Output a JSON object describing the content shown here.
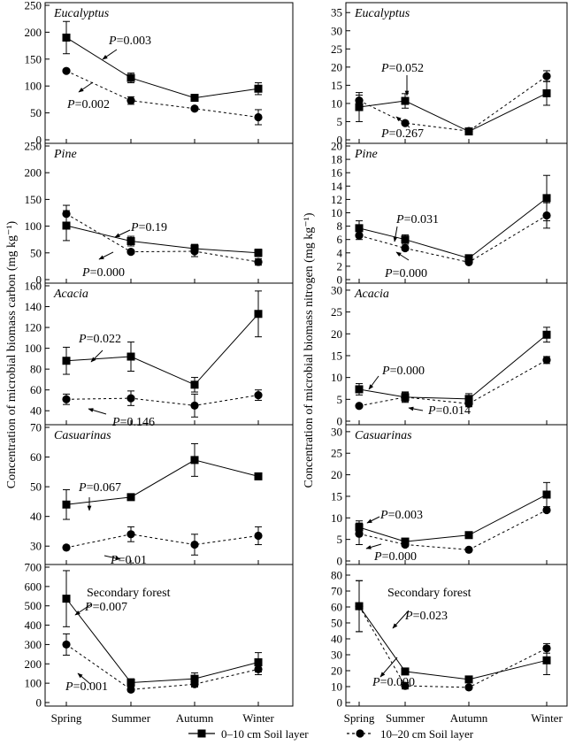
{
  "categories": [
    "Spring",
    "Summer",
    "Autumn",
    "Winter"
  ],
  "legend": [
    "0–10 cm Soil layer",
    "10–20 cm Soil layer"
  ],
  "ylabels": {
    "carbon": "Concentration of microbial biomass carbon (mg kg⁻¹)",
    "nitrogen": "Concentration of microbial biomass nitrogen (mg kg⁻¹)"
  },
  "chart_data": [
    {
      "type": "line",
      "variable": "carbon",
      "title": "Eucalyptus",
      "title_italic": true,
      "ylim": [
        0,
        250
      ],
      "yticks": [
        0,
        50,
        100,
        150,
        200,
        250
      ],
      "series": [
        {
          "name": "0–10 cm Soil layer",
          "values": [
            190,
            115,
            78,
            95
          ],
          "errors": [
            30,
            9,
            3,
            11
          ]
        },
        {
          "name": "10–20 cm Soil layer",
          "values": [
            128,
            73,
            58,
            42
          ],
          "errors": [
            3,
            7,
            3,
            14
          ]
        }
      ],
      "annotations": [
        "P=0.003",
        "P=0.002"
      ]
    },
    {
      "type": "line",
      "variable": "carbon",
      "title": "Pine",
      "title_italic": true,
      "ylim": [
        0,
        250
      ],
      "yticks": [
        0,
        50,
        100,
        150,
        200,
        250
      ],
      "series": [
        {
          "name": "0–10 cm Soil layer",
          "values": [
            101,
            72,
            58,
            50
          ],
          "errors": [
            28,
            9,
            8,
            7
          ]
        },
        {
          "name": "10–20 cm Soil layer",
          "values": [
            123,
            52,
            53,
            33
          ],
          "errors": [
            16,
            3,
            10,
            6
          ]
        }
      ],
      "annotations": [
        "P=0.19",
        "P=0.000"
      ]
    },
    {
      "type": "line",
      "variable": "carbon",
      "title": "Acacia",
      "title_italic": true,
      "ylim": [
        30,
        160
      ],
      "yticks": [
        40,
        60,
        80,
        100,
        120,
        140,
        160
      ],
      "series": [
        {
          "name": "0–10 cm Soil layer",
          "values": [
            88,
            92,
            65,
            133
          ],
          "errors": [
            13,
            14,
            7,
            22
          ]
        },
        {
          "name": "10–20 cm Soil layer",
          "values": [
            51,
            52,
            45,
            55
          ],
          "errors": [
            5,
            7,
            11,
            5
          ]
        }
      ],
      "annotations": [
        "P=0.022",
        "P=0.146"
      ]
    },
    {
      "type": "line",
      "variable": "carbon",
      "title": "Casuarinas",
      "title_italic": true,
      "ylim": [
        25,
        70
      ],
      "yticks": [
        30,
        40,
        50,
        60,
        70
      ],
      "series": [
        {
          "name": "0–10 cm Soil layer",
          "values": [
            44,
            46.5,
            59,
            53.5
          ],
          "errors": [
            5,
            0.5,
            5.5,
            0.5
          ]
        },
        {
          "name": "10–20 cm Soil layer",
          "values": [
            29.5,
            34,
            30.5,
            33.5
          ],
          "errors": [
            0.5,
            2.5,
            3.5,
            3
          ]
        }
      ],
      "annotations": [
        "P=0.067",
        "P=0.01"
      ]
    },
    {
      "type": "line",
      "variable": "carbon",
      "title": "Secondary forest",
      "title_italic": false,
      "ylim": [
        0,
        700
      ],
      "yticks": [
        0,
        100,
        200,
        300,
        400,
        500,
        600,
        700
      ],
      "series": [
        {
          "name": "0–10 cm Soil layer",
          "values": [
            537,
            103,
            123,
            208
          ],
          "errors": [
            145,
            20,
            30,
            50
          ]
        },
        {
          "name": "10–20 cm Soil layer",
          "values": [
            300,
            67,
            95,
            172
          ],
          "errors": [
            55,
            10,
            15,
            28
          ]
        }
      ],
      "annotations": [
        "P=0.007",
        "P=0.001"
      ]
    },
    {
      "type": "line",
      "variable": "nitrogen",
      "title": "Eucalyptus",
      "title_italic": true,
      "ylim": [
        0,
        37
      ],
      "yticks": [
        0,
        5,
        10,
        15,
        20,
        25,
        30,
        35
      ],
      "series": [
        {
          "name": "0–10 cm Soil layer",
          "values": [
            9,
            10.7,
            2.3,
            12.8
          ],
          "errors": [
            4,
            2,
            0.5,
            3.3
          ]
        },
        {
          "name": "10–20 cm Soil layer",
          "values": [
            10.8,
            4.6,
            2.4,
            17.5
          ],
          "errors": [
            1.5,
            0.5,
            0.3,
            1.5
          ]
        }
      ],
      "annotations": [
        "P=0.052",
        "P=0.267"
      ]
    },
    {
      "type": "line",
      "variable": "nitrogen",
      "title": "Pine",
      "title_italic": true,
      "ylim": [
        0,
        20
      ],
      "yticks": [
        0,
        2,
        4,
        6,
        8,
        10,
        12,
        14,
        16,
        18,
        20
      ],
      "series": [
        {
          "name": "0–10 cm Soil layer",
          "values": [
            7.7,
            6,
            3.2,
            12.2
          ],
          "errors": [
            1.1,
            0.7,
            0.2,
            3.4
          ]
        },
        {
          "name": "10–20 cm Soil layer",
          "values": [
            6.6,
            4.7,
            2.6,
            9.6
          ],
          "errors": [
            0.6,
            0.3,
            0.2,
            1.9
          ]
        }
      ],
      "annotations": [
        "P=0.031",
        "P=0.000"
      ]
    },
    {
      "type": "line",
      "variable": "nitrogen",
      "title": "Acacia",
      "title_italic": true,
      "ylim": [
        0,
        31
      ],
      "yticks": [
        0,
        5,
        10,
        15,
        20,
        25,
        30
      ],
      "series": [
        {
          "name": "0–10 cm Soil layer",
          "values": [
            7.3,
            5.5,
            5.1,
            19.8
          ],
          "errors": [
            1.3,
            1.2,
            1.2,
            1.7
          ]
        },
        {
          "name": "10–20 cm Soil layer",
          "values": [
            3.5,
            5.5,
            4,
            14
          ],
          "errors": [
            0.2,
            1,
            0.7,
            0.8
          ]
        }
      ],
      "annotations": [
        "P=0.000",
        "P=0.014"
      ]
    },
    {
      "type": "line",
      "variable": "nitrogen",
      "title": "Casuarinas",
      "title_italic": true,
      "ylim": [
        0,
        31
      ],
      "yticks": [
        0,
        5,
        10,
        15,
        20,
        25,
        30
      ],
      "series": [
        {
          "name": "0–10 cm Soil layer",
          "values": [
            7.8,
            4.5,
            6,
            15.4
          ],
          "errors": [
            1.5,
            0.4,
            0.3,
            2.8
          ]
        },
        {
          "name": "10–20 cm Soil layer",
          "values": [
            6.3,
            3.8,
            2.6,
            11.8
          ],
          "errors": [
            2.5,
            0.4,
            0.2,
            0.4
          ]
        }
      ],
      "annotations": [
        "P=0.003",
        "P=0.000"
      ]
    },
    {
      "type": "line",
      "variable": "nitrogen",
      "title": "Secondary forest",
      "title_italic": false,
      "ylim": [
        0,
        85
      ],
      "yticks": [
        0,
        10,
        20,
        30,
        40,
        50,
        60,
        70,
        80
      ],
      "series": [
        {
          "name": "0–10 cm Soil layer",
          "values": [
            60.5,
            19.5,
            14.5,
            26.5
          ],
          "errors": [
            16,
            1.5,
            1.5,
            9
          ]
        },
        {
          "name": "10–20 cm Soil layer",
          "values": [
            60.5,
            10.5,
            9.5,
            34
          ],
          "errors": [
            16,
            2,
            1,
            3
          ]
        }
      ],
      "annotations": [
        "P=0.023",
        "P=0.000"
      ]
    }
  ]
}
